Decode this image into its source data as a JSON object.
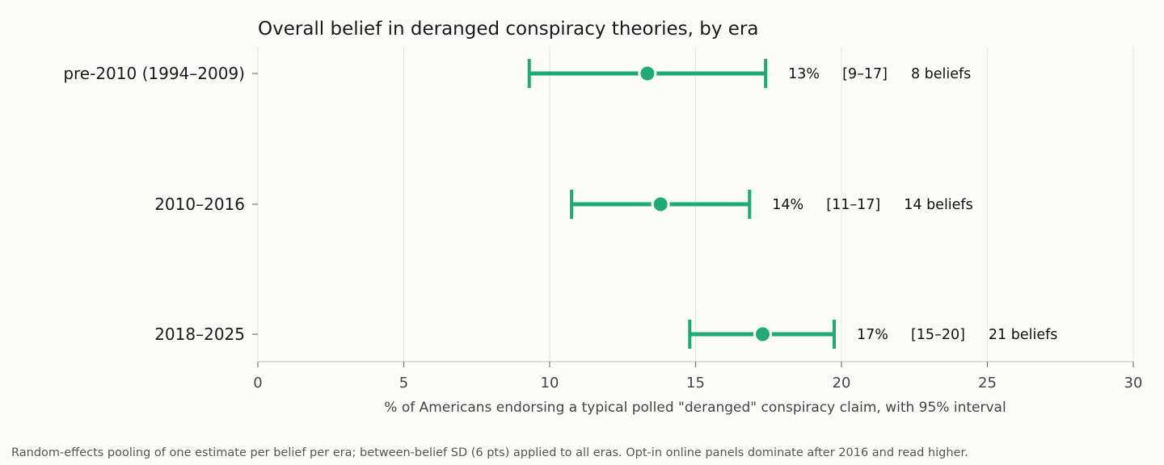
{
  "chart_data": {
    "type": "forest",
    "title": "Overall belief in deranged conspiracy theories, by era",
    "xlabel": "% of Americans endorsing a typical polled \"deranged\" conspiracy claim, with 95% interval",
    "xlim": [
      0,
      30
    ],
    "xticks": [
      "0",
      "5",
      "10",
      "15",
      "20",
      "25",
      "30"
    ],
    "grid": "vertical",
    "color": "#1fab78",
    "rows": [
      {
        "label": "pre-2010 (1994–2009)",
        "estimate": 13.35,
        "lo": 9.3,
        "hi": 17.4,
        "pct_text": "13%",
        "ci_text": "[9–17]",
        "n_text": "8 beliefs"
      },
      {
        "label": "2010–2016",
        "estimate": 13.8,
        "lo": 10.75,
        "hi": 16.85,
        "pct_text": "14%",
        "ci_text": "[11–17]",
        "n_text": "14 beliefs"
      },
      {
        "label": "2018–2025",
        "estimate": 17.3,
        "lo": 14.8,
        "hi": 19.75,
        "pct_text": "17%",
        "ci_text": "[15–20]",
        "n_text": "21 beliefs"
      }
    ],
    "footnote": "Random-effects pooling of one estimate per belief per era; between-belief SD (6 pts) applied to all eras. Opt-in online panels dominate after 2016 and read higher."
  }
}
